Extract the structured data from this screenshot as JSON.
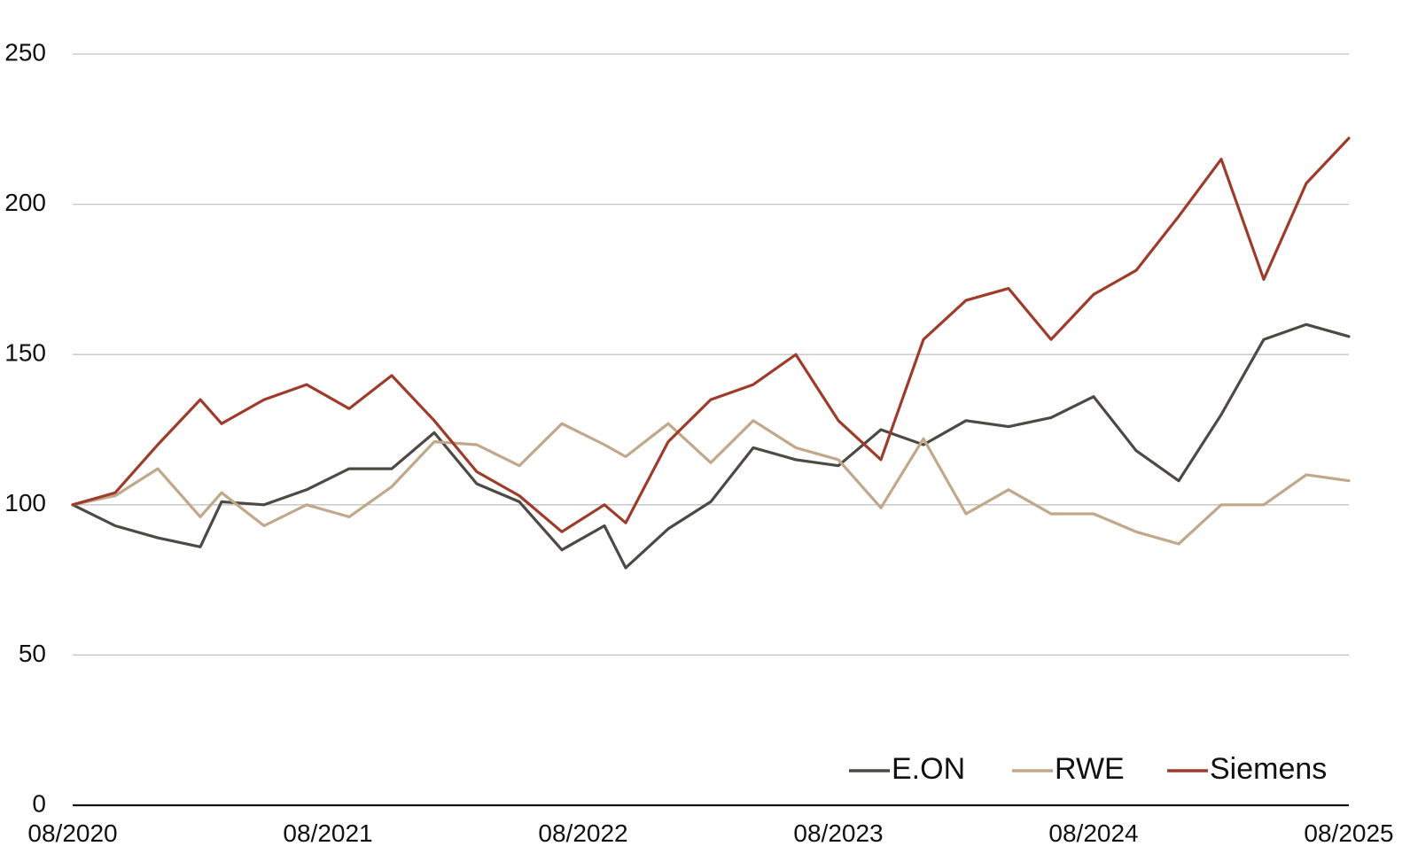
{
  "chart_data": {
    "type": "line",
    "title": "",
    "xlabel": "",
    "ylabel": "",
    "ylim": [
      0,
      250
    ],
    "yticks": [
      0,
      50,
      100,
      150,
      200,
      250
    ],
    "xlim": [
      "2020-08",
      "2025-08"
    ],
    "xticks": [
      "08/2020",
      "08/2021",
      "08/2022",
      "08/2023",
      "08/2024",
      "08/2025"
    ],
    "grid": "horizontal",
    "legend_position": "bottom-right",
    "series": [
      {
        "name": "E.ON",
        "color": "#4d4a44",
        "x": [
          "2020-08",
          "2020-10",
          "2020-12",
          "2021-02",
          "2021-03",
          "2021-05",
          "2021-07",
          "2021-09",
          "2021-11",
          "2022-01",
          "2022-03",
          "2022-05",
          "2022-07",
          "2022-09",
          "2022-10",
          "2022-12",
          "2023-02",
          "2023-04",
          "2023-06",
          "2023-08",
          "2023-10",
          "2023-12",
          "2024-02",
          "2024-04",
          "2024-06",
          "2024-08",
          "2024-10",
          "2024-12",
          "2025-02",
          "2025-04",
          "2025-06",
          "2025-08"
        ],
        "values": [
          100,
          93,
          89,
          86,
          101,
          100,
          105,
          112,
          112,
          124,
          107,
          101,
          85,
          93,
          79,
          92,
          101,
          119,
          115,
          113,
          125,
          120,
          128,
          126,
          129,
          136,
          118,
          108,
          130,
          155,
          160,
          156
        ]
      },
      {
        "name": "RWE",
        "color": "#c2a88b",
        "x": [
          "2020-08",
          "2020-10",
          "2020-12",
          "2021-02",
          "2021-03",
          "2021-05",
          "2021-07",
          "2021-09",
          "2021-11",
          "2022-01",
          "2022-03",
          "2022-05",
          "2022-07",
          "2022-09",
          "2022-10",
          "2022-12",
          "2023-02",
          "2023-04",
          "2023-06",
          "2023-08",
          "2023-10",
          "2023-12",
          "2024-02",
          "2024-04",
          "2024-06",
          "2024-08",
          "2024-10",
          "2024-12",
          "2025-02",
          "2025-04",
          "2025-06",
          "2025-08"
        ],
        "values": [
          100,
          103,
          112,
          96,
          104,
          93,
          100,
          96,
          106,
          121,
          120,
          113,
          127,
          120,
          116,
          127,
          114,
          128,
          119,
          115,
          99,
          122,
          97,
          105,
          97,
          97,
          91,
          87,
          100,
          100,
          110,
          108
        ]
      },
      {
        "name": "Siemens",
        "color": "#9e3c2b",
        "x": [
          "2020-08",
          "2020-10",
          "2020-12",
          "2021-02",
          "2021-03",
          "2021-05",
          "2021-07",
          "2021-09",
          "2021-11",
          "2022-01",
          "2022-03",
          "2022-05",
          "2022-07",
          "2022-09",
          "2022-10",
          "2022-12",
          "2023-02",
          "2023-04",
          "2023-06",
          "2023-08",
          "2023-10",
          "2023-12",
          "2024-02",
          "2024-04",
          "2024-06",
          "2024-08",
          "2024-10",
          "2024-12",
          "2025-02",
          "2025-04",
          "2025-06",
          "2025-08"
        ],
        "values": [
          100,
          104,
          120,
          135,
          127,
          135,
          140,
          132,
          143,
          128,
          111,
          103,
          91,
          100,
          94,
          121,
          135,
          140,
          150,
          128,
          115,
          155,
          168,
          172,
          155,
          170,
          178,
          196,
          215,
          175,
          207,
          222
        ]
      }
    ]
  }
}
